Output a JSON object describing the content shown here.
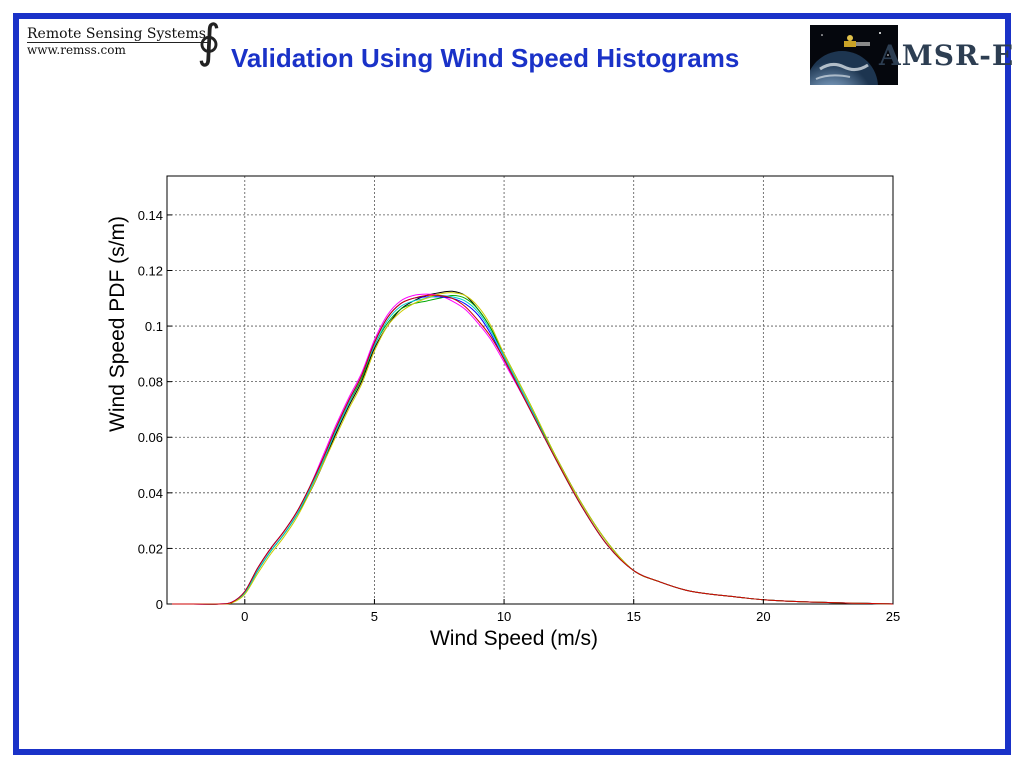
{
  "header": {
    "brand_name": "Remote Sensing Systems",
    "brand_url": "www.remss.com",
    "brand_symbol": "∮",
    "title": "Validation Using Wind Speed Histograms",
    "logo_text": "AMSR-E"
  },
  "colors": {
    "frame": "#1a32c8",
    "title": "#1a32c8",
    "series": [
      "#000000",
      "#ff00ff",
      "#00aa00",
      "#0000ff",
      "#00cccc",
      "#cccc00",
      "#cc0000"
    ]
  },
  "chart_data": {
    "type": "line",
    "title": "",
    "xlabel": "Wind Speed (m/s)",
    "ylabel": "Wind Speed PDF (s/m)",
    "xlim": [
      -3,
      25
    ],
    "ylim": [
      0,
      0.154
    ],
    "xticks": [
      0,
      5,
      10,
      15,
      20,
      25
    ],
    "yticks": [
      0,
      0.02,
      0.04,
      0.06,
      0.08,
      0.1,
      0.12,
      0.14
    ],
    "xtick_labels": [
      "0",
      "5",
      "10",
      "15",
      "20",
      "25"
    ],
    "ytick_labels": [
      "0",
      "0.02",
      "0.04",
      "0.06",
      "0.08",
      "0.1",
      "0.12",
      "0.14"
    ],
    "grid": true,
    "legend": "none",
    "x": [
      -3,
      -2,
      -1,
      -0.5,
      0,
      0.5,
      1,
      1.5,
      2,
      2.5,
      3,
      3.5,
      4,
      4.5,
      5,
      5.5,
      6,
      6.5,
      7,
      7.5,
      8,
      8.5,
      9,
      9.5,
      10,
      11,
      12,
      13,
      14,
      15,
      16,
      17,
      18,
      19,
      20,
      21,
      22,
      23,
      24,
      25
    ],
    "series": [
      {
        "values": [
          0,
          0,
          0,
          0.0005,
          0.004,
          0.012,
          0.019,
          0.025,
          0.032,
          0.04,
          0.05,
          0.061,
          0.071,
          0.08,
          0.092,
          0.1,
          0.106,
          0.109,
          0.111,
          0.112,
          0.1125,
          0.111,
          0.106,
          0.099,
          0.089,
          0.071,
          0.053,
          0.036,
          0.022,
          0.012,
          0.008,
          0.005,
          0.0035,
          0.0025,
          0.0015,
          0.001,
          0.0007,
          0.0004,
          0.0002,
          0
        ]
      },
      {
        "values": [
          0,
          0,
          0,
          0.0007,
          0.0045,
          0.013,
          0.02,
          0.026,
          0.033,
          0.042,
          0.053,
          0.064,
          0.074,
          0.083,
          0.095,
          0.104,
          0.109,
          0.111,
          0.1115,
          0.111,
          0.109,
          0.106,
          0.101,
          0.095,
          0.087,
          0.07,
          0.052,
          0.035,
          0.021,
          0.012,
          0.008,
          0.005,
          0.0035,
          0.0025,
          0.0015,
          0.001,
          0.0007,
          0.0004,
          0.0002,
          0
        ]
      },
      {
        "values": [
          0,
          0,
          0,
          0.0005,
          0.004,
          0.012,
          0.019,
          0.025,
          0.032,
          0.041,
          0.051,
          0.062,
          0.072,
          0.081,
          0.093,
          0.101,
          0.106,
          0.108,
          0.109,
          0.11,
          0.111,
          0.11,
          0.106,
          0.099,
          0.09,
          0.072,
          0.053,
          0.036,
          0.022,
          0.012,
          0.008,
          0.005,
          0.0035,
          0.0025,
          0.0015,
          0.001,
          0.0007,
          0.0004,
          0.0002,
          0
        ]
      },
      {
        "values": [
          0,
          0,
          0,
          0.0006,
          0.0045,
          0.013,
          0.02,
          0.026,
          0.033,
          0.042,
          0.052,
          0.063,
          0.073,
          0.082,
          0.094,
          0.103,
          0.108,
          0.11,
          0.1105,
          0.1105,
          0.11,
          0.108,
          0.104,
          0.097,
          0.088,
          0.07,
          0.052,
          0.035,
          0.021,
          0.012,
          0.008,
          0.005,
          0.0035,
          0.0025,
          0.0015,
          0.001,
          0.0007,
          0.0004,
          0.0002,
          0
        ]
      },
      {
        "values": [
          0,
          0,
          0,
          0.0005,
          0.004,
          0.012,
          0.019,
          0.025,
          0.032,
          0.041,
          0.051,
          0.062,
          0.072,
          0.082,
          0.093,
          0.102,
          0.107,
          0.109,
          0.11,
          0.111,
          0.1105,
          0.109,
          0.105,
          0.098,
          0.089,
          0.071,
          0.052,
          0.035,
          0.021,
          0.012,
          0.008,
          0.005,
          0.0035,
          0.0025,
          0.0015,
          0.001,
          0.0007,
          0.0004,
          0.0002,
          0
        ]
      },
      {
        "values": [
          0,
          0,
          0,
          0.0004,
          0.0035,
          0.011,
          0.018,
          0.024,
          0.031,
          0.04,
          0.05,
          0.06,
          0.07,
          0.079,
          0.091,
          0.1,
          0.105,
          0.108,
          0.11,
          0.1115,
          0.112,
          0.111,
          0.107,
          0.1,
          0.09,
          0.072,
          0.053,
          0.036,
          0.022,
          0.012,
          0.008,
          0.005,
          0.0035,
          0.0025,
          0.0015,
          0.001,
          0.0007,
          0.0004,
          0.0002,
          0
        ]
      },
      {
        "values": [
          0,
          0,
          0,
          0.0006,
          0.0045,
          0.013,
          0.02,
          0.026,
          0.033,
          0.042,
          0.052,
          0.063,
          0.073,
          0.082,
          0.094,
          0.103,
          0.108,
          0.11,
          0.111,
          0.111,
          0.11,
          0.107,
          0.102,
          0.096,
          0.088,
          0.07,
          0.052,
          0.035,
          0.021,
          0.012,
          0.008,
          0.005,
          0.0035,
          0.0025,
          0.0015,
          0.001,
          0.0007,
          0.0004,
          0.0002,
          0
        ]
      }
    ]
  }
}
